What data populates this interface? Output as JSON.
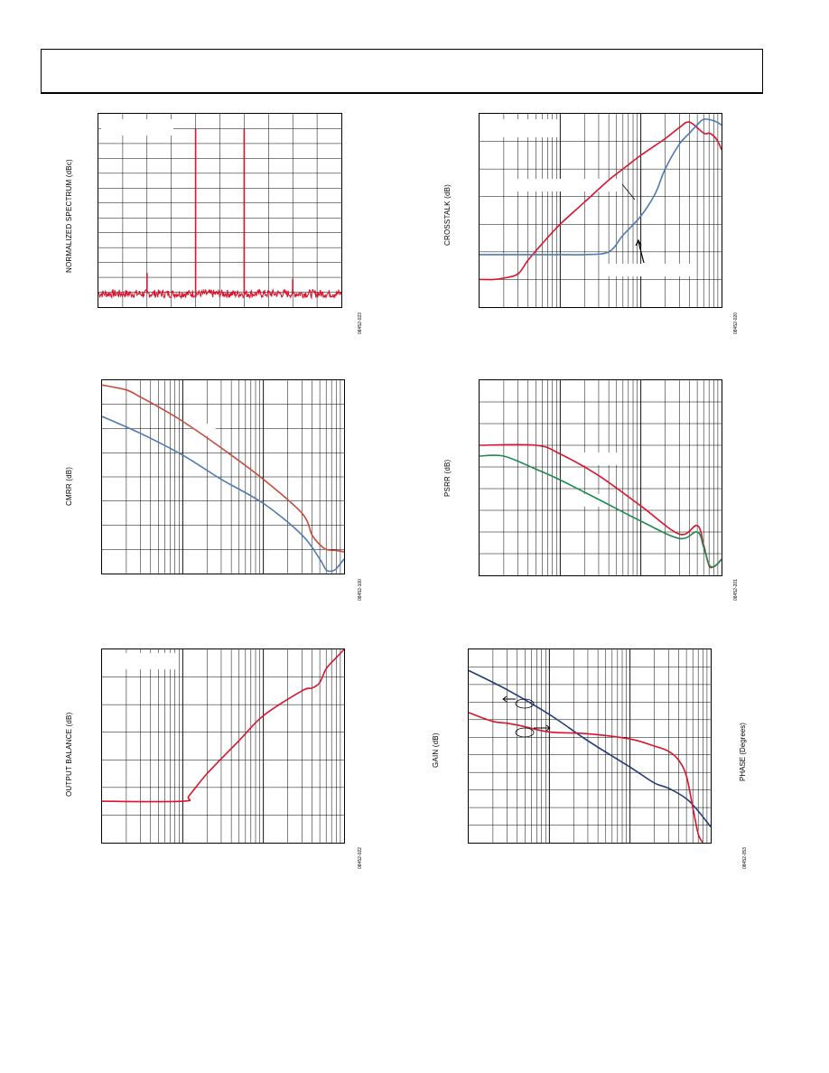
{
  "colors": {
    "red": "#d9142b",
    "blue": "#4d7ab3",
    "green": "#1e8a4c",
    "navy": "#1f3c7a",
    "orange_red": "#c94a3c"
  },
  "chart_data": [
    {
      "id": "spectrum",
      "type": "line",
      "ylabel": "NORMALIZED SPECTRUM (dBc)",
      "figure_id": "08452-023",
      "x_scale": "linear",
      "xlim": [
        0,
        10
      ],
      "ylim": [
        0,
        13
      ],
      "grid": {
        "v": 10,
        "h": 13
      },
      "series": [
        {
          "name": "",
          "color": "red",
          "noise_floor": 0.9,
          "spurs": [
            [
              2,
              2.3
            ],
            [
              4,
              12.0
            ],
            [
              6,
              12.0
            ],
            [
              8,
              1.9
            ]
          ]
        }
      ]
    },
    {
      "id": "crosstalk",
      "type": "line",
      "ylabel": "CROSSTALK (dB)",
      "figure_id": "08452-020",
      "x_scale": "log",
      "xlim": [
        1,
        1000
      ],
      "ylim": [
        0,
        7
      ],
      "series": [
        {
          "name": "",
          "color": "red",
          "x": [
            1,
            1.5,
            2,
            3,
            4,
            6,
            10,
            20,
            40,
            60,
            100,
            200,
            300,
            400,
            600,
            700,
            800,
            900,
            1000
          ],
          "y": [
            1.0,
            1.0,
            1.05,
            1.2,
            1.7,
            2.3,
            3.0,
            3.8,
            4.6,
            5.0,
            5.5,
            6.1,
            6.5,
            6.7,
            6.3,
            6.3,
            6.2,
            6.0,
            5.7
          ]
        },
        {
          "name": "",
          "color": "blue",
          "x": [
            1,
            10,
            20,
            40,
            60,
            100,
            150,
            200,
            300,
            400,
            500,
            600,
            800,
            1000
          ],
          "y": [
            1.9,
            1.9,
            1.9,
            2.0,
            2.6,
            3.3,
            4.1,
            5.0,
            5.9,
            6.3,
            6.6,
            6.8,
            6.75,
            6.6
          ]
        }
      ],
      "annotation_arrows": 2
    },
    {
      "id": "cmrr",
      "type": "line",
      "ylabel": "CMRR (dB)",
      "figure_id": "08452-100",
      "x_scale": "log",
      "xlim": [
        1,
        1000
      ],
      "ylim": [
        0,
        8
      ],
      "series": [
        {
          "name": "",
          "color": "orange_red",
          "x": [
            1,
            2,
            3,
            5,
            10,
            30,
            100,
            300,
            400,
            500,
            600,
            800,
            1000
          ],
          "y": [
            7.8,
            7.6,
            7.3,
            6.9,
            6.3,
            5.2,
            3.9,
            2.5,
            1.6,
            1.2,
            1.0,
            0.95,
            0.9
          ]
        },
        {
          "name": "",
          "color": "blue",
          "x": [
            1,
            3,
            10,
            30,
            100,
            300,
            500,
            600,
            700,
            800,
            1000
          ],
          "y": [
            6.5,
            5.8,
            4.9,
            3.9,
            2.9,
            1.6,
            0.6,
            0.15,
            0.1,
            0.2,
            0.6
          ]
        }
      ]
    },
    {
      "id": "psrr",
      "type": "line",
      "ylabel": "PSRR (dB)",
      "figure_id": "08452-201",
      "x_scale": "log",
      "xlim": [
        1,
        1000
      ],
      "ylim": [
        0,
        9
      ],
      "series": [
        {
          "name": "",
          "color": "red",
          "x": [
            1,
            5,
            10,
            30,
            100,
            300,
            500,
            600,
            700,
            800,
            900,
            1000
          ],
          "y": [
            6.0,
            6.0,
            5.6,
            4.6,
            3.2,
            1.9,
            2.3,
            1.4,
            0.45,
            0.4,
            0.55,
            0.75
          ]
        },
        {
          "name": "",
          "color": "green",
          "x": [
            1,
            2,
            5,
            10,
            30,
            100,
            300,
            500,
            600,
            700,
            800,
            900,
            1000
          ],
          "y": [
            5.5,
            5.5,
            4.9,
            4.4,
            3.5,
            2.5,
            1.7,
            2.0,
            1.3,
            0.5,
            0.4,
            0.55,
            0.75
          ]
        }
      ]
    },
    {
      "id": "balance",
      "type": "line",
      "ylabel": "OUTPUT BALANCE (dB)",
      "figure_id": "08452-022",
      "x_scale": "log",
      "xlim": [
        1,
        1000
      ],
      "ylim": [
        0,
        7
      ],
      "series": [
        {
          "name": "",
          "color": "red",
          "x": [
            1,
            10,
            12,
            20,
            50,
            100,
            300,
            400,
            500,
            600,
            800,
            1000
          ],
          "y": [
            1.5,
            1.5,
            1.7,
            2.5,
            3.7,
            4.6,
            5.5,
            5.6,
            5.8,
            6.3,
            6.7,
            7.0
          ]
        }
      ]
    },
    {
      "id": "gain_phase",
      "type": "line",
      "ylabel": "GAIN (dB)",
      "ylabel_right": "PHASE (Degrees)",
      "figure_id": "08452-053",
      "x_scale": "log",
      "xlim": [
        1,
        1000
      ],
      "ylim": [
        0,
        11
      ],
      "series": [
        {
          "name": "",
          "color": "navy",
          "x": [
            1,
            3,
            10,
            30,
            100,
            200,
            300,
            500,
            700,
            1000
          ],
          "y": [
            9.8,
            8.7,
            7.3,
            5.8,
            4.3,
            3.4,
            3.1,
            2.5,
            1.8,
            0.9
          ]
        },
        {
          "name": "",
          "color": "red",
          "x": [
            1,
            2,
            3,
            5,
            10,
            30,
            100,
            200,
            300,
            400,
            500,
            600,
            700,
            800
          ],
          "y": [
            7.4,
            6.9,
            6.8,
            6.6,
            6.3,
            6.2,
            5.9,
            5.5,
            5.2,
            4.7,
            3.8,
            2.0,
            0.5,
            0.0
          ]
        }
      ],
      "annotations": [
        "left arrow with loop",
        "right arrow with loop"
      ]
    }
  ]
}
